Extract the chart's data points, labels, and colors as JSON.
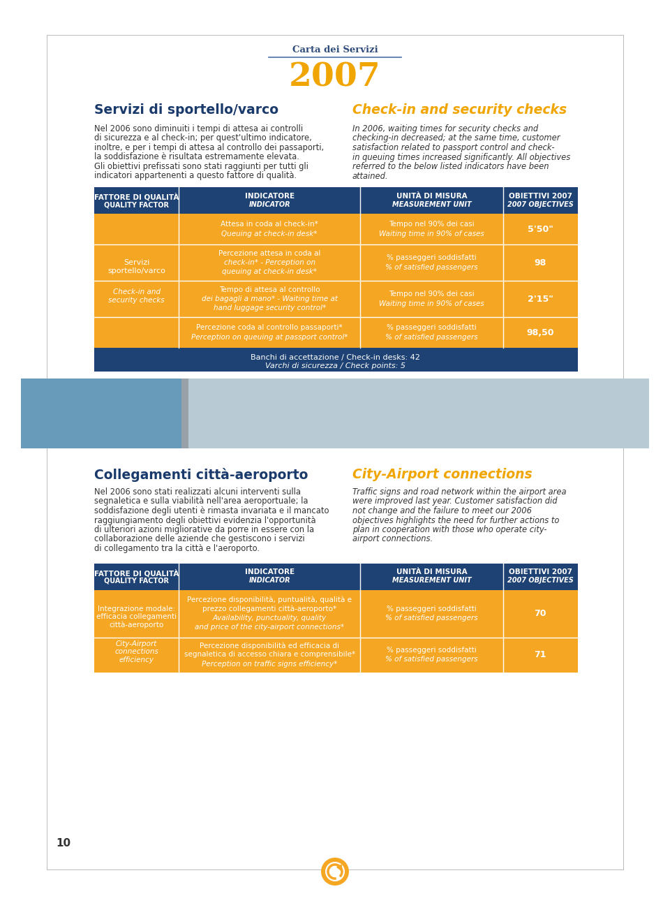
{
  "page_bg": "#ffffff",
  "border_color": "#cccccc",
  "header_line_color": "#4a6fa5",
  "carta_dei_servizi": "Carta dei Servizi",
  "year": "2007",
  "year_color": "#f0a500",
  "header_text_color": "#2d4a7a",
  "left_title": "Servizi di sportello/varco",
  "left_title_color": "#1a3a6b",
  "right_title": "Check-in and security checks",
  "right_title_color": "#f0a500",
  "left_body": "Nel 2006 sono diminuiti i tempi di attesa ai controlli\ndi sicurezza e al check-in; per quest'ultimo indicatore,\ninoltre, e per i tempi di attesa al controllo dei passaporti,\nla soddisfazione è risultata estremamente elevata.\nGli obiettivi prefissati sono stati raggiunti per tutti gli\nindicatori appartenenti a questo fattore di qualità.",
  "right_body": "In 2006, waiting times for security checks and\nchecking-in decreased; at the same time, customer\nsatisfaction related to passport control and check-\nin queuing times increased significantly. All objectives\nreferred to the below listed indicators have been\nattained.",
  "table_header_bg": "#1e4273",
  "table_header_text": "#ffffff",
  "table_row_bg": "#f5a623",
  "table_row_text": "#ffffff",
  "table_footer_bg": "#1e4273",
  "table_divider": "#ffffff",
  "col1_header": "FATTORE DI QUALITÀ\nQUALITY FACTOR",
  "col2_header": "INDICATORE\nINDICATOR",
  "col3_header": "UNITÀ DI MISURA\nMEASUREMENT UNIT",
  "col4_header": "OBIETTIVI 2007\n2007 OBJECTIVES",
  "rows": [
    {
      "col2_line1": "Attesa in coda al check-in*",
      "col2_line2": "Queuing at check-in desk*",
      "col3_line1": "Tempo nel 90% dei casi",
      "col3_line2": "Waiting time in 90% of cases",
      "col4": "5'50\""
    },
    {
      "col2_line1": "Percezione attesa in coda al",
      "col2_line2": "check-in* - Perception on",
      "col2_line3": "queuing at check-in desk*",
      "col3_line1": "% passeggeri soddisfatti",
      "col3_line2": "% of satisfied passengers",
      "col4": "98"
    },
    {
      "col2_line1": "Tempo di attesa al controllo",
      "col2_line2": "dei bagagli a mano* - Waiting time at",
      "col2_line3": "hand luggage security control*",
      "col3_line1": "Tempo nel 90% dei casi",
      "col3_line2": "Waiting time in 90% of cases",
      "col4": "2'15\""
    },
    {
      "col2_line1": "Percezione coda al controllo passaporti*",
      "col2_line2": "Perception on queuing at passport control*",
      "col3_line1": "% passeggeri soddisfatti",
      "col3_line2": "% of satisfied passengers",
      "col4": "98,50"
    }
  ],
  "footer_line1": "Banchi di accettazione / Check-in desks: 42",
  "footer_line2": "Varchi di sicurezza / Check points: 5",
  "footer_bg": "#1e4273",
  "footer_text_color": "#ffffff",
  "section2_left_title": "Collegamenti città-aeroporto",
  "section2_right_title": "City-Airport connections",
  "section2_left_body": "Nel 2006 sono stati realizzati alcuni interventi sulla\nsegnaletica e sulla viabilità nell'area aeroportuale; la\nsoddisfazione degli utenti è rimasta invariata e il mancato\nraggiungiamento degli obiettivi evidenzia l'opportunità\ndi ulteriori azioni migliorative da porre in essere con la\ncollaborazione delle aziende che gestiscono i servizi\ndi collegamento tra la città e l'aeroporto.",
  "section2_right_body": "Traffic signs and road network within the airport area\nwere improved last year. Customer satisfaction did\nnot change and the failure to meet our 2006\nobjectives highlights the need for further actions to\nplan in cooperation with those who operate city-\nairport connections.",
  "table2_rows": [
    {
      "col2_line1": "Percezione disponibilità, puntualità, qualità e",
      "col2_line2": "prezzo collegamenti città-aeroporto*",
      "col2_line3": "Availability, punctuality, quality",
      "col2_line4": "and price of the city-airport connections*",
      "col3_line1": "% passeggeri soddisfatti",
      "col3_line2": "% of satisfied passengers",
      "col4": "70"
    },
    {
      "col2_line1": "Percezione disponibilità ed efficacia di",
      "col2_line2": "segnaletica di accesso chiara e comprensibile*",
      "col2_line3": "Perception on traffic signs efficiency*",
      "col3_line1": "% passeggeri soddisfatti",
      "col3_line2": "% of satisfied passengers",
      "col4": "71"
    }
  ],
  "page_number": "10",
  "logo_color": "#f5a623",
  "logo_border_color": "#1e4273"
}
